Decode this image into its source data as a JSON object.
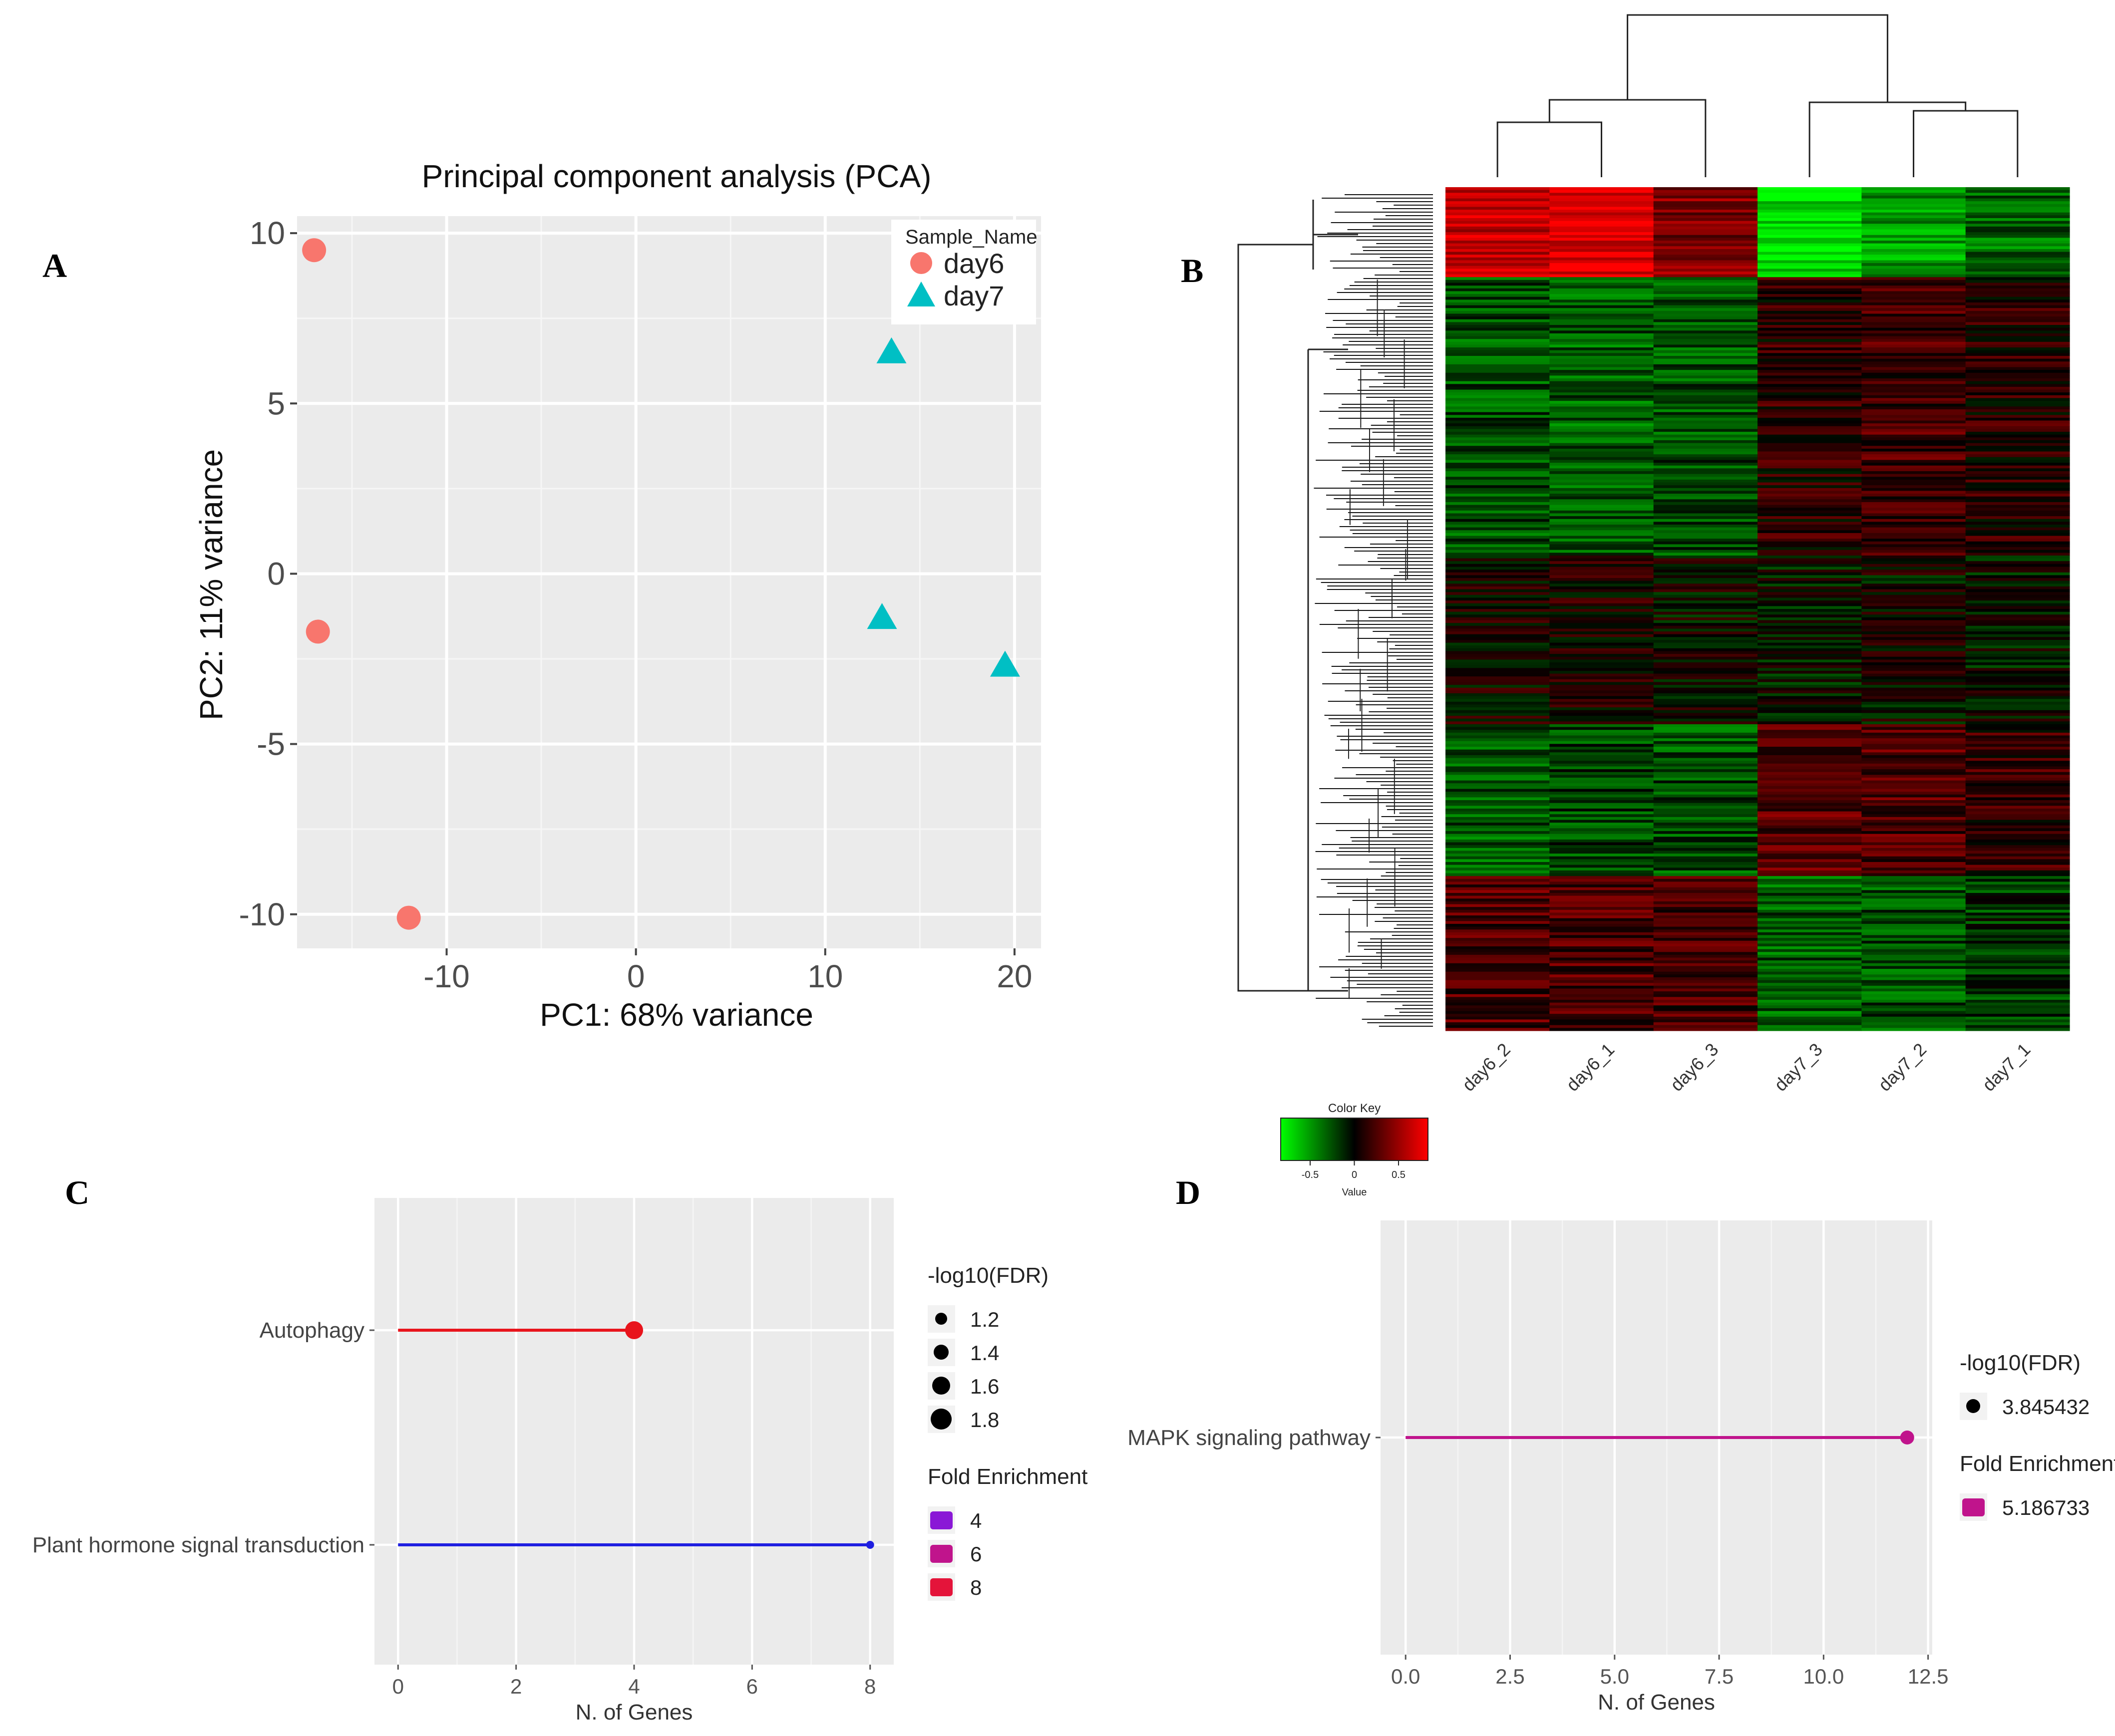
{
  "panels": {
    "A": "A",
    "B": "B",
    "C": "C",
    "D": "D"
  },
  "chart_data": [
    {
      "panel": "A",
      "type": "scatter",
      "title": "Principal component analysis (PCA)",
      "xlabel": "PC1: 68% variance",
      "ylabel": "PC2: 11% variance",
      "xlim": [
        -17.9,
        21.4
      ],
      "ylim": [
        -11.0,
        10.5
      ],
      "xticks": [
        -10,
        0,
        10,
        20
      ],
      "yticks": [
        10,
        5,
        0,
        -5,
        -10
      ],
      "grid": true,
      "legend_title": "Sample_Name",
      "legend_position": "top-right",
      "series": [
        {
          "name": "day6",
          "color": "#f8766d",
          "shape": "circle",
          "points": [
            [
              -17.0,
              9.5
            ],
            [
              -16.8,
              -1.7
            ],
            [
              -12.0,
              -10.1
            ]
          ]
        },
        {
          "name": "day7",
          "color": "#00bfc4",
          "shape": "triangle",
          "points": [
            [
              13.5,
              6.5
            ],
            [
              13.0,
              -1.3
            ],
            [
              19.5,
              -2.7
            ]
          ]
        }
      ]
    },
    {
      "panel": "B",
      "type": "heatmap",
      "columns": [
        "day6_2",
        "day6_1",
        "day6_3",
        "day7_3",
        "day7_2",
        "day7_1"
      ],
      "color_key": {
        "title": "Color Key",
        "xlabel": "Value",
        "ticks": [
          "-0.5",
          "0",
          "0.5"
        ],
        "low_color": "#00ff00",
        "mid_color": "#000000",
        "high_color": "#ff0000"
      },
      "row_blocks": [
        {
          "fraction": 0.105,
          "values": [
            0.8,
            0.9,
            0.5,
            -0.9,
            -0.6,
            -0.4
          ]
        },
        {
          "fraction": 0.33,
          "values": [
            -0.3,
            -0.35,
            -0.3,
            0.15,
            0.25,
            0.15
          ]
        },
        {
          "fraction": 0.2,
          "values": [
            0.05,
            0.1,
            0.0,
            -0.05,
            0.0,
            -0.05
          ]
        },
        {
          "fraction": 0.18,
          "values": [
            -0.35,
            -0.25,
            -0.3,
            0.35,
            0.3,
            0.2
          ]
        },
        {
          "fraction": 0.185,
          "values": [
            0.3,
            0.3,
            0.25,
            -0.35,
            -0.3,
            -0.2
          ]
        }
      ]
    },
    {
      "panel": "C",
      "type": "lollipop",
      "categories": [
        "Autophagy",
        "Plant hormone signal transduction"
      ],
      "values": [
        4,
        8
      ],
      "colors": [
        "#e8141c",
        "#1f1fe0"
      ],
      "xlabel": "N. of Genes",
      "xlim": [
        -0.4,
        8.4
      ],
      "xticks": [
        0,
        2,
        4,
        6,
        8
      ],
      "grid": true,
      "size_legend": {
        "title": "-log10(FDR)",
        "values": [
          "1.2",
          "1.4",
          "1.6",
          "1.8"
        ]
      },
      "color_legend": {
        "title": "Fold Enrichment",
        "values": [
          "4",
          "6",
          "8"
        ],
        "colors": [
          "#8a18d6",
          "#c0148c",
          "#e4143a"
        ]
      }
    },
    {
      "panel": "D",
      "type": "lollipop",
      "categories": [
        "MAPK signaling pathway"
      ],
      "values": [
        12
      ],
      "colors": [
        "#c0148c"
      ],
      "xlabel": "N. of Genes",
      "xlim": [
        -0.6,
        12.6
      ],
      "xticks": [
        "0.0",
        "2.5",
        "5.0",
        "7.5",
        "10.0",
        "12.5"
      ],
      "grid": true,
      "size_legend": {
        "title": "-log10(FDR)",
        "values": [
          "3.845432"
        ]
      },
      "color_legend": {
        "title": "Fold Enrichment",
        "values": [
          "5.186733"
        ],
        "colors": [
          "#c0148c"
        ]
      }
    }
  ]
}
